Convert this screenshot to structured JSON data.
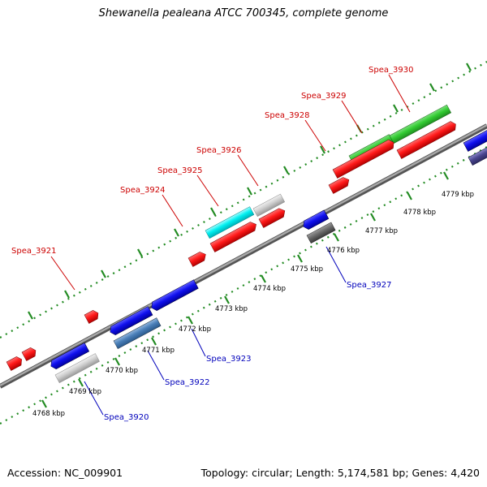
{
  "title": "Shewanella pealeana ATCC 700345, complete genome",
  "footer": {
    "accession": "Accession: NC_009901",
    "summary": "Topology: circular; Length: 5,174,581 bp; Genes: 4,420"
  },
  "genome_map": {
    "kbp_scale": [
      "4768 kbp",
      "4769 kbp",
      "4770 kbp",
      "4771 kbp",
      "4772 kbp",
      "4773 kbp",
      "4774 kbp",
      "4775 kbp",
      "4776 kbp",
      "4777 kbp",
      "4778 kbp",
      "4779 kbp"
    ],
    "forward_labels": [
      "Spea_3921",
      "Spea_3924",
      "Spea_3925",
      "Spea_3926",
      "Spea_3928",
      "Spea_3929",
      "Spea_3930"
    ],
    "reverse_labels": [
      "Spea_3920",
      "Spea_3922",
      "Spea_3923",
      "Spea_3927"
    ],
    "colors": {
      "forward_label": "#cc0000",
      "reverse_label": "#0000bb",
      "ticks": "#228b22",
      "backbone": "#808080"
    }
  }
}
